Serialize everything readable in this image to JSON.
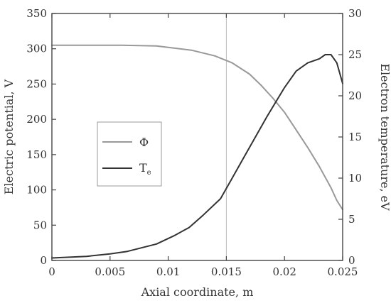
{
  "chart_data": {
    "type": "line",
    "title": "",
    "xlabel": "Axial coordinate, m",
    "ylabel_left": "Electric potential, V",
    "ylabel_right": "Electron temperature, eV",
    "xlim": [
      0,
      0.025
    ],
    "ylim_left": [
      0,
      350
    ],
    "ylim_right": [
      0,
      30
    ],
    "x_ticks": [
      0,
      0.005,
      0.01,
      0.015,
      0.02,
      0.025
    ],
    "x_tick_labels": [
      "0",
      "0.005",
      "0.01",
      "0.015",
      "0.02",
      "0.025"
    ],
    "y_left_ticks": [
      0,
      50,
      100,
      150,
      200,
      250,
      300,
      350
    ],
    "y_left_tick_labels": [
      "0",
      "50",
      "100",
      "150",
      "200",
      "250",
      "300",
      "350"
    ],
    "y_right_ticks": [
      0,
      5,
      10,
      15,
      20,
      25,
      30
    ],
    "y_right_tick_labels": [
      "0",
      "5",
      "10",
      "15",
      "20",
      "25",
      "30"
    ],
    "grid": "vertical line at x = 0.015",
    "legend_placement": "center-left",
    "series": [
      {
        "name": "Φ",
        "axis": "left",
        "color": "#999999",
        "x": [
          0,
          0.003,
          0.006,
          0.009,
          0.01,
          0.012,
          0.014,
          0.0155,
          0.017,
          0.018,
          0.019,
          0.02,
          0.021,
          0.022,
          0.023,
          0.024,
          0.0245,
          0.025
        ],
        "y": [
          305,
          305,
          305,
          304,
          302,
          298,
          290,
          280,
          264,
          248,
          230,
          210,
          185,
          160,
          133,
          103,
          85,
          72
        ]
      },
      {
        "name": "T",
        "name_subscript": "e",
        "axis": "right",
        "color": "#333333",
        "x": [
          0,
          0.003,
          0.005,
          0.0065,
          0.009,
          0.0105,
          0.0118,
          0.013,
          0.0145,
          0.0155,
          0.0165,
          0.0175,
          0.0185,
          0.02,
          0.021,
          0.022,
          0.023,
          0.0235,
          0.024,
          0.0245,
          0.025
        ],
        "y": [
          0.3,
          0.5,
          0.8,
          1.1,
          2.0,
          3.0,
          4.0,
          5.5,
          7.5,
          10.0,
          12.5,
          15.0,
          17.5,
          21.0,
          23.0,
          24.0,
          24.5,
          25.0,
          25.0,
          24.0,
          21.5
        ]
      }
    ]
  }
}
